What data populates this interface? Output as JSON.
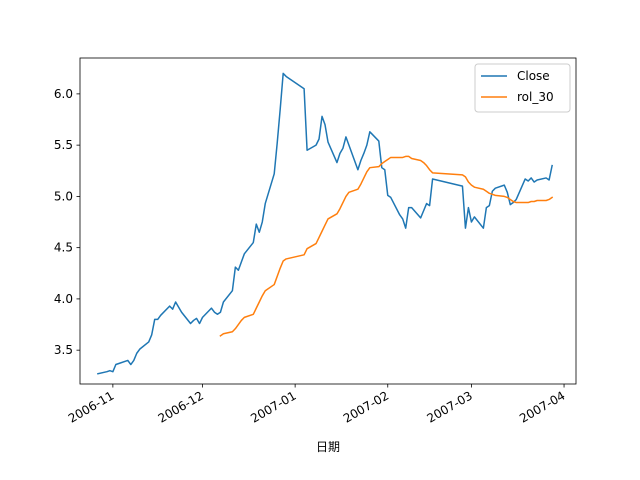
{
  "chart_data": {
    "type": "line",
    "title": "",
    "xlabel": "日期",
    "ylabel": "",
    "x_type": "date",
    "xlim": [
      "2006-10-21",
      "2007-04-05"
    ],
    "ylim": [
      3.17,
      6.35
    ],
    "grid": false,
    "legend_position": "top-right",
    "x_ticks": [
      {
        "date": "2006-11-01",
        "label": "2006-11"
      },
      {
        "date": "2006-12-01",
        "label": "2006-12"
      },
      {
        "date": "2007-01-01",
        "label": "2007-01"
      },
      {
        "date": "2007-02-01",
        "label": "2007-02"
      },
      {
        "date": "2007-03-01",
        "label": "2007-03"
      },
      {
        "date": "2007-04-01",
        "label": "2007-04"
      }
    ],
    "y_ticks": [
      {
        "value": 3.5,
        "label": "3.5"
      },
      {
        "value": 4.0,
        "label": "4.0"
      },
      {
        "value": 4.5,
        "label": "4.5"
      },
      {
        "value": 5.0,
        "label": "5.0"
      },
      {
        "value": 5.5,
        "label": "5.5"
      },
      {
        "value": 6.0,
        "label": "6.0"
      }
    ],
    "series": [
      {
        "name": "Close",
        "color": "#1f77b4",
        "x": [
          "2006-10-27",
          "2006-10-30",
          "2006-10-31",
          "2006-11-01",
          "2006-11-02",
          "2006-11-03",
          "2006-11-06",
          "2006-11-07",
          "2006-11-08",
          "2006-11-09",
          "2006-11-10",
          "2006-11-13",
          "2006-11-14",
          "2006-11-15",
          "2006-11-16",
          "2006-11-17",
          "2006-11-20",
          "2006-11-21",
          "2006-11-22",
          "2006-11-23",
          "2006-11-24",
          "2006-11-27",
          "2006-11-28",
          "2006-11-29",
          "2006-11-30",
          "2006-12-01",
          "2006-12-04",
          "2006-12-05",
          "2006-12-06",
          "2006-12-07",
          "2006-12-08",
          "2006-12-11",
          "2006-12-12",
          "2006-12-13",
          "2006-12-14",
          "2006-12-15",
          "2006-12-18",
          "2006-12-19",
          "2006-12-20",
          "2006-12-21",
          "2006-12-22",
          "2006-12-25",
          "2006-12-26",
          "2006-12-27",
          "2006-12-28",
          "2006-12-29",
          "2007-01-04",
          "2007-01-05",
          "2007-01-08",
          "2007-01-09",
          "2007-01-10",
          "2007-01-11",
          "2007-01-12",
          "2007-01-15",
          "2007-01-16",
          "2007-01-17",
          "2007-01-18",
          "2007-01-19",
          "2007-01-22",
          "2007-01-23",
          "2007-01-24",
          "2007-01-25",
          "2007-01-26",
          "2007-01-29",
          "2007-01-30",
          "2007-01-31",
          "2007-02-01",
          "2007-02-02",
          "2007-02-05",
          "2007-02-06",
          "2007-02-07",
          "2007-02-08",
          "2007-02-09",
          "2007-02-12",
          "2007-02-13",
          "2007-02-14",
          "2007-02-15",
          "2007-02-16",
          "2007-02-26",
          "2007-02-27",
          "2007-02-28",
          "2007-03-01",
          "2007-03-02",
          "2007-03-05",
          "2007-03-06",
          "2007-03-07",
          "2007-03-08",
          "2007-03-09",
          "2007-03-12",
          "2007-03-13",
          "2007-03-14",
          "2007-03-15",
          "2007-03-16",
          "2007-03-19",
          "2007-03-20",
          "2007-03-21",
          "2007-03-22",
          "2007-03-23",
          "2007-03-26",
          "2007-03-27",
          "2007-03-28"
        ],
        "values": [
          3.27,
          3.29,
          3.3,
          3.29,
          3.36,
          3.37,
          3.4,
          3.36,
          3.4,
          3.47,
          3.51,
          3.58,
          3.65,
          3.8,
          3.8,
          3.84,
          3.93,
          3.9,
          3.97,
          3.92,
          3.87,
          3.76,
          3.79,
          3.81,
          3.76,
          3.82,
          3.91,
          3.87,
          3.85,
          3.87,
          3.97,
          4.08,
          4.31,
          4.28,
          4.36,
          4.44,
          4.55,
          4.73,
          4.65,
          4.75,
          4.93,
          5.22,
          5.52,
          5.85,
          6.2,
          6.17,
          6.05,
          5.45,
          5.5,
          5.56,
          5.78,
          5.7,
          5.53,
          5.33,
          5.42,
          5.47,
          5.58,
          5.5,
          5.26,
          5.35,
          5.42,
          5.5,
          5.63,
          5.54,
          5.28,
          5.26,
          5.01,
          4.99,
          4.82,
          4.78,
          4.69,
          4.89,
          4.89,
          4.79,
          4.86,
          4.93,
          4.91,
          5.17,
          5.1,
          4.69,
          4.89,
          4.75,
          4.8,
          4.69,
          4.89,
          4.91,
          5.05,
          5.08,
          5.11,
          5.04,
          4.92,
          4.94,
          4.97,
          5.17,
          5.15,
          5.18,
          5.14,
          5.16,
          5.18,
          5.16,
          5.3
        ]
      },
      {
        "name": "rol_30",
        "color": "#ff7f0e",
        "x": [
          "2006-12-07",
          "2006-12-08",
          "2006-12-11",
          "2006-12-12",
          "2006-12-13",
          "2006-12-14",
          "2006-12-15",
          "2006-12-18",
          "2006-12-19",
          "2006-12-20",
          "2006-12-21",
          "2006-12-22",
          "2006-12-25",
          "2006-12-26",
          "2006-12-27",
          "2006-12-28",
          "2006-12-29",
          "2007-01-04",
          "2007-01-05",
          "2007-01-08",
          "2007-01-09",
          "2007-01-10",
          "2007-01-11",
          "2007-01-12",
          "2007-01-15",
          "2007-01-16",
          "2007-01-17",
          "2007-01-18",
          "2007-01-19",
          "2007-01-22",
          "2007-01-23",
          "2007-01-24",
          "2007-01-25",
          "2007-01-26",
          "2007-01-29",
          "2007-01-30",
          "2007-01-31",
          "2007-02-01",
          "2007-02-02",
          "2007-02-05",
          "2007-02-06",
          "2007-02-07",
          "2007-02-08",
          "2007-02-09",
          "2007-02-12",
          "2007-02-13",
          "2007-02-14",
          "2007-02-15",
          "2007-02-16",
          "2007-02-26",
          "2007-02-27",
          "2007-02-28",
          "2007-03-01",
          "2007-03-02",
          "2007-03-05",
          "2007-03-06",
          "2007-03-07",
          "2007-03-08",
          "2007-03-09",
          "2007-03-12",
          "2007-03-13",
          "2007-03-14",
          "2007-03-15",
          "2007-03-16",
          "2007-03-19",
          "2007-03-20",
          "2007-03-21",
          "2007-03-22",
          "2007-03-23",
          "2007-03-26",
          "2007-03-27",
          "2007-03-28"
        ],
        "values": [
          3.64,
          3.66,
          3.68,
          3.71,
          3.75,
          3.79,
          3.82,
          3.85,
          3.91,
          3.97,
          4.03,
          4.08,
          4.14,
          4.22,
          4.3,
          4.37,
          4.39,
          4.43,
          4.49,
          4.54,
          4.6,
          4.66,
          4.72,
          4.78,
          4.83,
          4.88,
          4.94,
          5.0,
          5.04,
          5.07,
          5.12,
          5.18,
          5.24,
          5.28,
          5.29,
          5.32,
          5.34,
          5.36,
          5.38,
          5.38,
          5.38,
          5.39,
          5.39,
          5.37,
          5.35,
          5.33,
          5.3,
          5.26,
          5.23,
          5.21,
          5.19,
          5.14,
          5.11,
          5.09,
          5.07,
          5.05,
          5.03,
          5.02,
          5.01,
          5.0,
          4.99,
          4.97,
          4.95,
          4.94,
          4.94,
          4.94,
          4.95,
          4.95,
          4.96,
          4.96,
          4.97,
          4.99
        ]
      }
    ]
  }
}
